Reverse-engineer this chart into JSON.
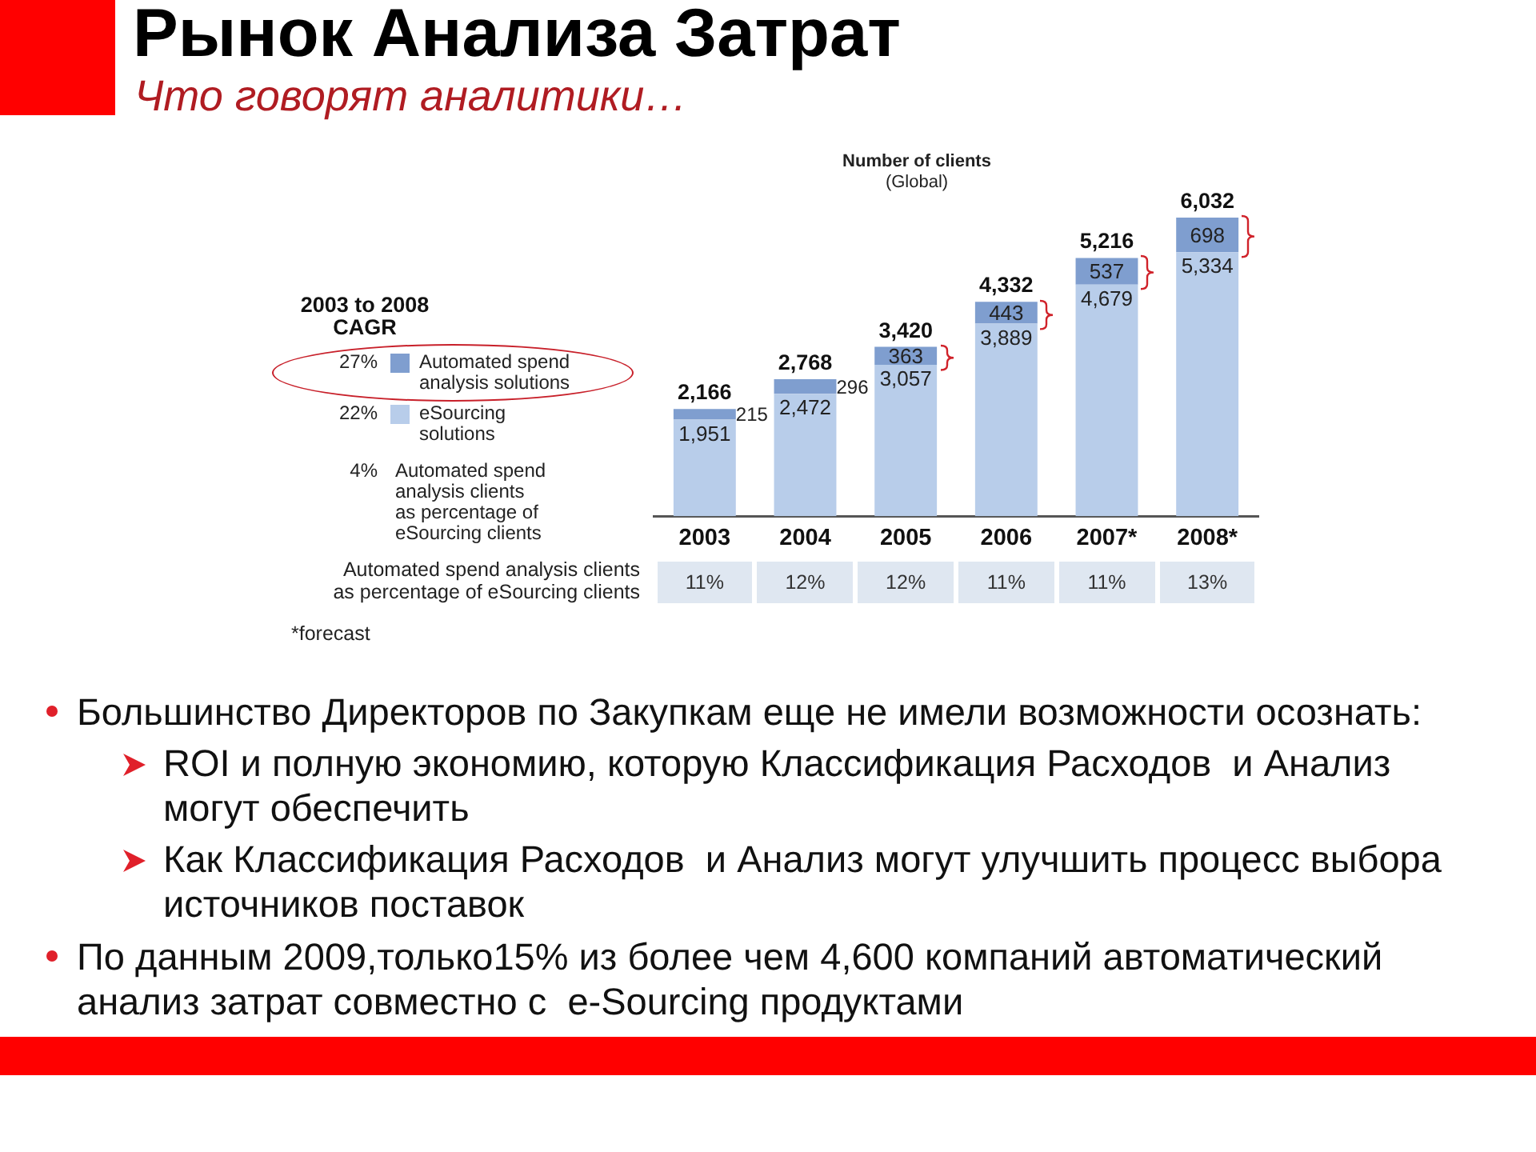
{
  "chart_data": {
    "type": "bar",
    "title": "Рынок Анализа Затрат",
    "subtitle": "Что говорят аналитики…",
    "categories": [
      "2003",
      "2004",
      "2005",
      "2006",
      "2007*",
      "2008*"
    ],
    "series": [
      {
        "name": "eSourcing solutions",
        "color": "#b8cdea",
        "values": [
          1951,
          2472,
          3057,
          3889,
          4679,
          5334
        ],
        "value_labels": [
          "1,951",
          "2,472",
          "3,057",
          "3,889",
          "4,679",
          "5,334"
        ]
      },
      {
        "name": "Automated spend analysis solutions",
        "color": "#7f9ecf",
        "values": [
          215,
          296,
          363,
          443,
          537,
          698
        ],
        "value_labels": [
          "215",
          "296",
          "363",
          "443",
          "537",
          "698"
        ]
      }
    ],
    "stacked": true,
    "totals": [
      "2,166",
      "2,768",
      "3,420",
      "4,332",
      "5,216",
      "6,032"
    ],
    "legend": "left",
    "legend_title": "2003 to 2008 CAGR",
    "tick_labels": "x",
    "annotations": [
      "Number of clients",
      "(Global)",
      "27%",
      "22%",
      "4%",
      "Automated spend analysis clients as percentage of eSourcing clients",
      "Automated spend analysis clients as percentage of eSourcing clients",
      "11%",
      "12%",
      "12%",
      "11%",
      "11%",
      "13%",
      "*forecast",
      "Большинство Директоров по Закупкам еще не имели возможности осознать:",
      "ROI и полную экономию, которую Классификация Расходов  и Анализ могут обеспечить",
      "Как Классификация Расходов  и Анализ могут улучшить процесс выбора источников поставок",
      "По данным 2009,только15% из более чем 4,600 компаний автоматический анализ затрат совместно с  e-Sourcing продуктами"
    ]
  }
}
